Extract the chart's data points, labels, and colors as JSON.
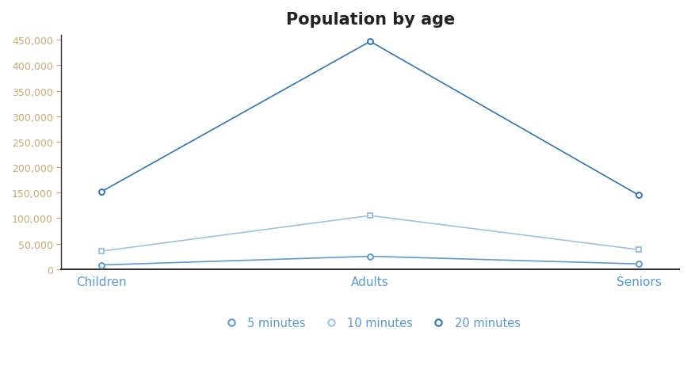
{
  "title": "Population by age",
  "categories": [
    "Children",
    "Adults",
    "Seniors"
  ],
  "series": [
    {
      "label": "5 minutes",
      "values": [
        8000,
        25000,
        10000
      ],
      "color": "#5b9bd5",
      "marker": "o",
      "linewidth": 1.2
    },
    {
      "label": "10 minutes",
      "values": [
        35000,
        105000,
        38000
      ],
      "color": "#9dc3e6",
      "marker": "s",
      "linewidth": 1.2
    },
    {
      "label": "20 minutes",
      "values": [
        152000,
        447000,
        145000
      ],
      "color": "#2e75b6",
      "marker": "o",
      "linewidth": 1.2
    }
  ],
  "ylim": [
    0,
    460000
  ],
  "yticks": [
    0,
    50000,
    100000,
    150000,
    200000,
    250000,
    300000,
    350000,
    400000,
    450000
  ],
  "background_color": "#ffffff",
  "title_fontsize": 15,
  "ytick_label_color": "#c9a96e",
  "xtick_label_color": "#5b9bd5",
  "legend_label_color": "#5b9bd5",
  "spine_color": "#333333"
}
